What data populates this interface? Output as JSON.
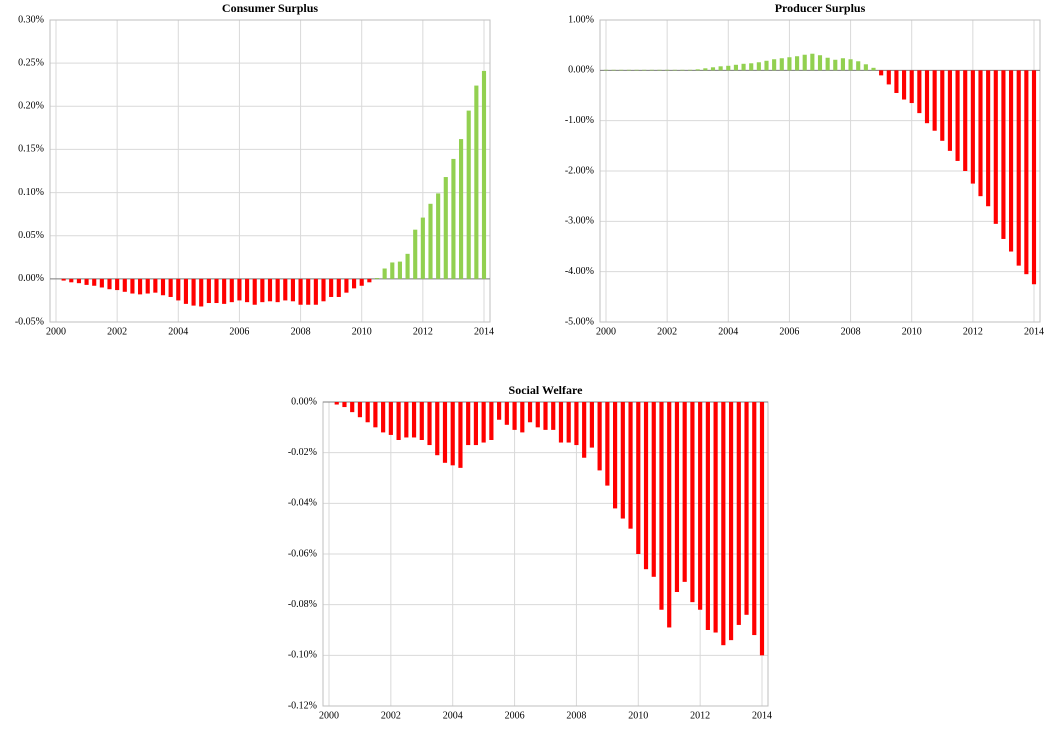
{
  "chart_data": [
    {
      "type": "bar",
      "title": "Consumer Surplus",
      "positive_color": "#92d050",
      "negative_color": "#ff0000",
      "grid": true,
      "x": [
        2000,
        2000.25,
        2000.5,
        2000.75,
        2001,
        2001.25,
        2001.5,
        2001.75,
        2002,
        2002.25,
        2002.5,
        2002.75,
        2003,
        2003.25,
        2003.5,
        2003.75,
        2004,
        2004.25,
        2004.5,
        2004.75,
        2005,
        2005.25,
        2005.5,
        2005.75,
        2006,
        2006.25,
        2006.5,
        2006.75,
        2007,
        2007.25,
        2007.5,
        2007.75,
        2008,
        2008.25,
        2008.5,
        2008.75,
        2009,
        2009.25,
        2009.5,
        2009.75,
        2010,
        2010.25,
        2010.5,
        2010.75,
        2011,
        2011.25,
        2011.5,
        2011.75,
        2012,
        2012.25,
        2012.5,
        2012.75,
        2013,
        2013.25,
        2013.5,
        2013.75,
        2014
      ],
      "values": [
        0,
        -0.002,
        -0.004,
        -0.005,
        -0.007,
        -0.008,
        -0.01,
        -0.012,
        -0.013,
        -0.015,
        -0.017,
        -0.018,
        -0.017,
        -0.016,
        -0.019,
        -0.021,
        -0.025,
        -0.029,
        -0.031,
        -0.032,
        -0.028,
        -0.028,
        -0.029,
        -0.027,
        -0.025,
        -0.027,
        -0.03,
        -0.027,
        -0.026,
        -0.027,
        -0.025,
        -0.026,
        -0.03,
        -0.03,
        -0.03,
        -0.026,
        -0.021,
        -0.021,
        -0.016,
        -0.011,
        -0.008,
        -0.004,
        0.001,
        0.012,
        0.019,
        0.02,
        0.029,
        0.057,
        0.071,
        0.087,
        0.099,
        0.118,
        0.139,
        0.162,
        0.195,
        0.224,
        0.241
      ],
      "xlim": [
        2000,
        2014
      ],
      "xticks": [
        2000,
        2002,
        2004,
        2006,
        2008,
        2010,
        2012,
        2014
      ],
      "ylim": [
        -0.05,
        0.3
      ],
      "yticks": [
        {
          "value": -0.05,
          "label": "-0.05%"
        },
        {
          "value": 0,
          "label": "0.00%"
        },
        {
          "value": 0.05,
          "label": "0.05%"
        },
        {
          "value": 0.1,
          "label": "0.10%"
        },
        {
          "value": 0.15,
          "label": "0.15%"
        },
        {
          "value": 0.2,
          "label": "0.20%"
        },
        {
          "value": 0.25,
          "label": "0.25%"
        },
        {
          "value": 0.3,
          "label": "0.30%"
        }
      ]
    },
    {
      "type": "bar",
      "title": "Producer Surplus",
      "positive_color": "#92d050",
      "negative_color": "#ff0000",
      "grid": true,
      "x": [
        2000,
        2000.25,
        2000.5,
        2000.75,
        2001,
        2001.25,
        2001.5,
        2001.75,
        2002,
        2002.25,
        2002.5,
        2002.75,
        2003,
        2003.25,
        2003.5,
        2003.75,
        2004,
        2004.25,
        2004.5,
        2004.75,
        2005,
        2005.25,
        2005.5,
        2005.75,
        2006,
        2006.25,
        2006.5,
        2006.75,
        2007,
        2007.25,
        2007.5,
        2007.75,
        2008,
        2008.25,
        2008.5,
        2008.75,
        2009,
        2009.25,
        2009.5,
        2009.75,
        2010,
        2010.25,
        2010.5,
        2010.75,
        2011,
        2011.25,
        2011.5,
        2011.75,
        2012,
        2012.25,
        2012.5,
        2012.75,
        2013,
        2013.25,
        2013.5,
        2013.75,
        2014
      ],
      "values": [
        0.01,
        0.01,
        0.01,
        0.01,
        0.01,
        0.01,
        0.01,
        0.01,
        0.01,
        0.01,
        0.01,
        0.01,
        0.02,
        0.04,
        0.06,
        0.08,
        0.09,
        0.11,
        0.13,
        0.14,
        0.16,
        0.19,
        0.22,
        0.24,
        0.26,
        0.28,
        0.31,
        0.33,
        0.3,
        0.25,
        0.21,
        0.24,
        0.22,
        0.18,
        0.12,
        0.05,
        -0.1,
        -0.28,
        -0.45,
        -0.58,
        -0.65,
        -0.85,
        -1.05,
        -1.2,
        -1.4,
        -1.6,
        -1.8,
        -2.0,
        -2.25,
        -2.5,
        -2.7,
        -3.05,
        -3.35,
        -3.6,
        -3.88,
        -4.05,
        -4.25
      ],
      "xlim": [
        2000,
        2014
      ],
      "xticks": [
        2000,
        2002,
        2004,
        2006,
        2008,
        2010,
        2012,
        2014
      ],
      "ylim": [
        -5,
        1
      ],
      "yticks": [
        {
          "value": -5,
          "label": "-5.00%"
        },
        {
          "value": -4,
          "label": "-4.00%"
        },
        {
          "value": -3,
          "label": "-3.00%"
        },
        {
          "value": -2,
          "label": "-2.00%"
        },
        {
          "value": -1,
          "label": "-1.00%"
        },
        {
          "value": 0,
          "label": "0.00%"
        },
        {
          "value": 1,
          "label": "1.00%"
        }
      ]
    },
    {
      "type": "bar",
      "title": "Social Welfare",
      "positive_color": "#92d050",
      "negative_color": "#ff0000",
      "grid": true,
      "x": [
        2000,
        2000.25,
        2000.5,
        2000.75,
        2001,
        2001.25,
        2001.5,
        2001.75,
        2002,
        2002.25,
        2002.5,
        2002.75,
        2003,
        2003.25,
        2003.5,
        2003.75,
        2004,
        2004.25,
        2004.5,
        2004.75,
        2005,
        2005.25,
        2005.5,
        2005.75,
        2006,
        2006.25,
        2006.5,
        2006.75,
        2007,
        2007.25,
        2007.5,
        2007.75,
        2008,
        2008.25,
        2008.5,
        2008.75,
        2009,
        2009.25,
        2009.5,
        2009.75,
        2010,
        2010.25,
        2010.5,
        2010.75,
        2011,
        2011.25,
        2011.5,
        2011.75,
        2012,
        2012.25,
        2012.5,
        2012.75,
        2013,
        2013.25,
        2013.5,
        2013.75,
        2014
      ],
      "values": [
        0,
        -0.001,
        -0.002,
        -0.004,
        -0.006,
        -0.008,
        -0.01,
        -0.012,
        -0.013,
        -0.015,
        -0.014,
        -0.014,
        -0.015,
        -0.017,
        -0.021,
        -0.024,
        -0.025,
        -0.026,
        -0.017,
        -0.017,
        -0.016,
        -0.015,
        -0.007,
        -0.009,
        -0.011,
        -0.012,
        -0.008,
        -0.01,
        -0.011,
        -0.011,
        -0.016,
        -0.016,
        -0.017,
        -0.022,
        -0.018,
        -0.027,
        -0.033,
        -0.042,
        -0.046,
        -0.05,
        -0.06,
        -0.066,
        -0.069,
        -0.082,
        -0.089,
        -0.075,
        -0.071,
        -0.079,
        -0.082,
        -0.09,
        -0.091,
        -0.096,
        -0.094,
        -0.088,
        -0.084,
        -0.092,
        -0.1
      ],
      "xlim": [
        2000,
        2014
      ],
      "xticks": [
        2000,
        2002,
        2004,
        2006,
        2008,
        2010,
        2012,
        2014
      ],
      "ylim": [
        -0.12,
        0
      ],
      "yticks": [
        {
          "value": -0.12,
          "label": "-0.12%"
        },
        {
          "value": -0.1,
          "label": "-0.10%"
        },
        {
          "value": -0.08,
          "label": "-0.08%"
        },
        {
          "value": -0.06,
          "label": "-0.06%"
        },
        {
          "value": -0.04,
          "label": "-0.04%"
        },
        {
          "value": -0.02,
          "label": "-0.02%"
        },
        {
          "value": 0,
          "label": "0.00%"
        }
      ]
    }
  ]
}
